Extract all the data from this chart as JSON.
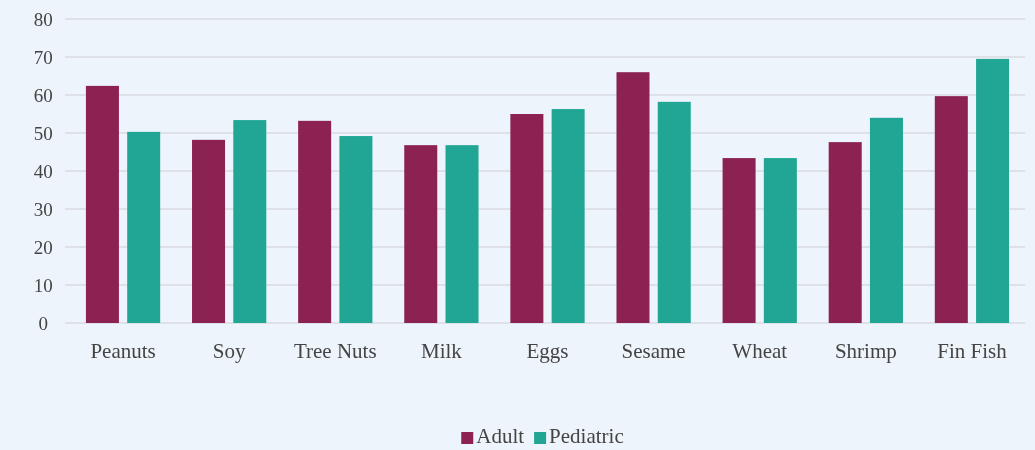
{
  "chart_data": {
    "type": "bar",
    "categories": [
      "Peanuts",
      "Soy",
      "Tree Nuts",
      "Milk",
      "Eggs",
      "Sesame",
      "Wheat",
      "Shrimp",
      "Fin Fish"
    ],
    "series": [
      {
        "name": "Adult",
        "color": "#8b2252",
        "values": [
          62.4,
          48.2,
          53.2,
          46.8,
          55,
          66,
          43.4,
          47.6,
          59.7
        ]
      },
      {
        "name": "Pediatric",
        "color": "#21a696",
        "values": [
          50.3,
          53.4,
          49.2,
          46.8,
          56.3,
          58.2,
          43.4,
          54,
          69.5
        ]
      }
    ],
    "ylim": [
      0,
      80
    ],
    "yticks": [
      0,
      10,
      20,
      30,
      40,
      50,
      60,
      70,
      80
    ],
    "grid": "y",
    "legend": "bottom"
  }
}
